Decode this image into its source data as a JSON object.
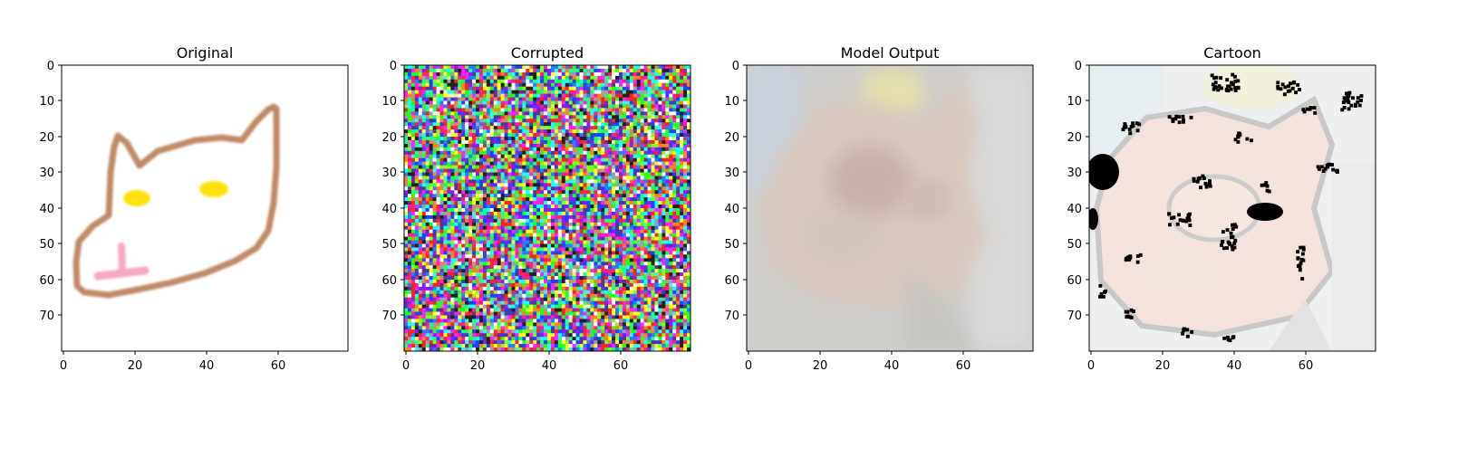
{
  "chart_data": [
    {
      "type": "image",
      "title": "Original",
      "xlim": [
        0,
        80
      ],
      "ylim": [
        80,
        0
      ],
      "x_ticks": [
        0,
        20,
        40,
        60
      ],
      "y_ticks": [
        0,
        10,
        20,
        30,
        40,
        50,
        60,
        70
      ],
      "content": "cat-outline-drawing"
    },
    {
      "type": "image",
      "title": "Corrupted",
      "xlim": [
        0,
        80
      ],
      "ylim": [
        80,
        0
      ],
      "x_ticks": [
        0,
        20,
        40,
        60
      ],
      "y_ticks": [
        0,
        10,
        20,
        30,
        40,
        50,
        60,
        70
      ],
      "content": "random-rgb-noise"
    },
    {
      "type": "image",
      "title": "Model Output",
      "xlim": [
        0,
        80
      ],
      "ylim": [
        80,
        0
      ],
      "x_ticks": [
        0,
        20,
        40,
        60
      ],
      "y_ticks": [
        0,
        10,
        20,
        30,
        40,
        50,
        60,
        70
      ],
      "content": "blurry-cat-photo"
    },
    {
      "type": "image",
      "title": "Cartoon",
      "xlim": [
        0,
        80
      ],
      "ylim": [
        80,
        0
      ],
      "x_ticks": [
        0,
        20,
        40,
        60
      ],
      "y_ticks": [
        0,
        10,
        20,
        30,
        40,
        50,
        60,
        70
      ],
      "content": "cartoonized-cat"
    }
  ]
}
